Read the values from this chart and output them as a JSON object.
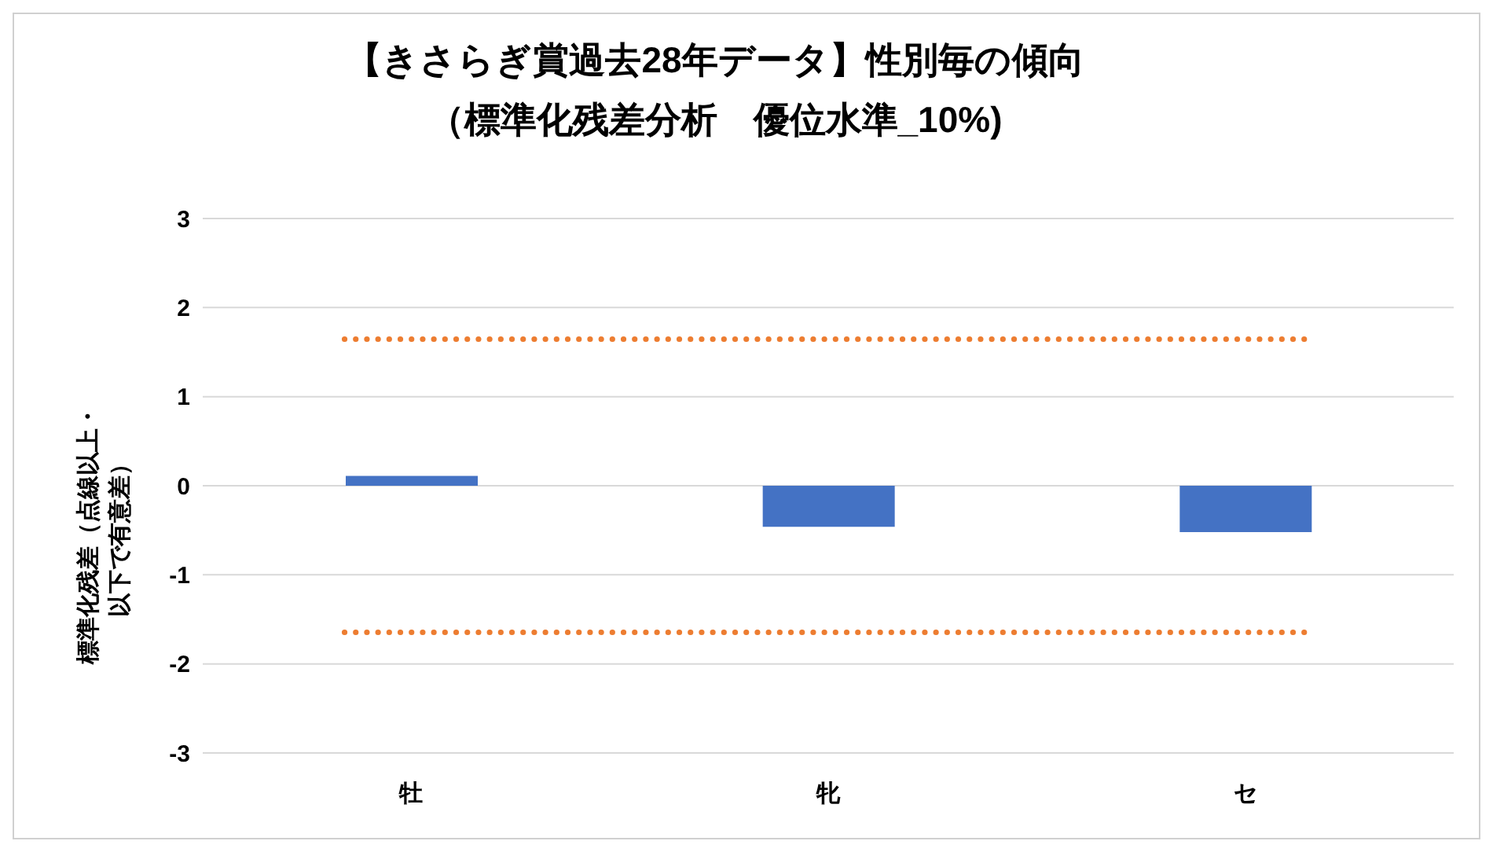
{
  "chart_data": {
    "type": "bar",
    "title": "【きさらぎ賞過去28年データ】性別毎の傾向",
    "subtitle": "（標準化残差分析　優位水準_10%)",
    "ylabel": "標準化残差（点線以上・以下で有意差）",
    "categories": [
      "牡",
      "牝",
      "セ"
    ],
    "series": [
      {
        "color": "#4472c4",
        "values": [
          0.11,
          -0.46,
          -0.52
        ]
      }
    ],
    "ylim": [
      -3,
      3
    ],
    "yticks": [
      -3,
      -2,
      -1,
      0,
      1,
      2,
      3
    ],
    "grid": "y",
    "legend": false,
    "ref_lines": [
      {
        "axis": "y",
        "value": 1.645,
        "color": "#ed7d31",
        "line_style": "dotted"
      },
      {
        "axis": "y",
        "value": -1.645,
        "color": "#ed7d31",
        "line_style": "dotted"
      }
    ]
  }
}
